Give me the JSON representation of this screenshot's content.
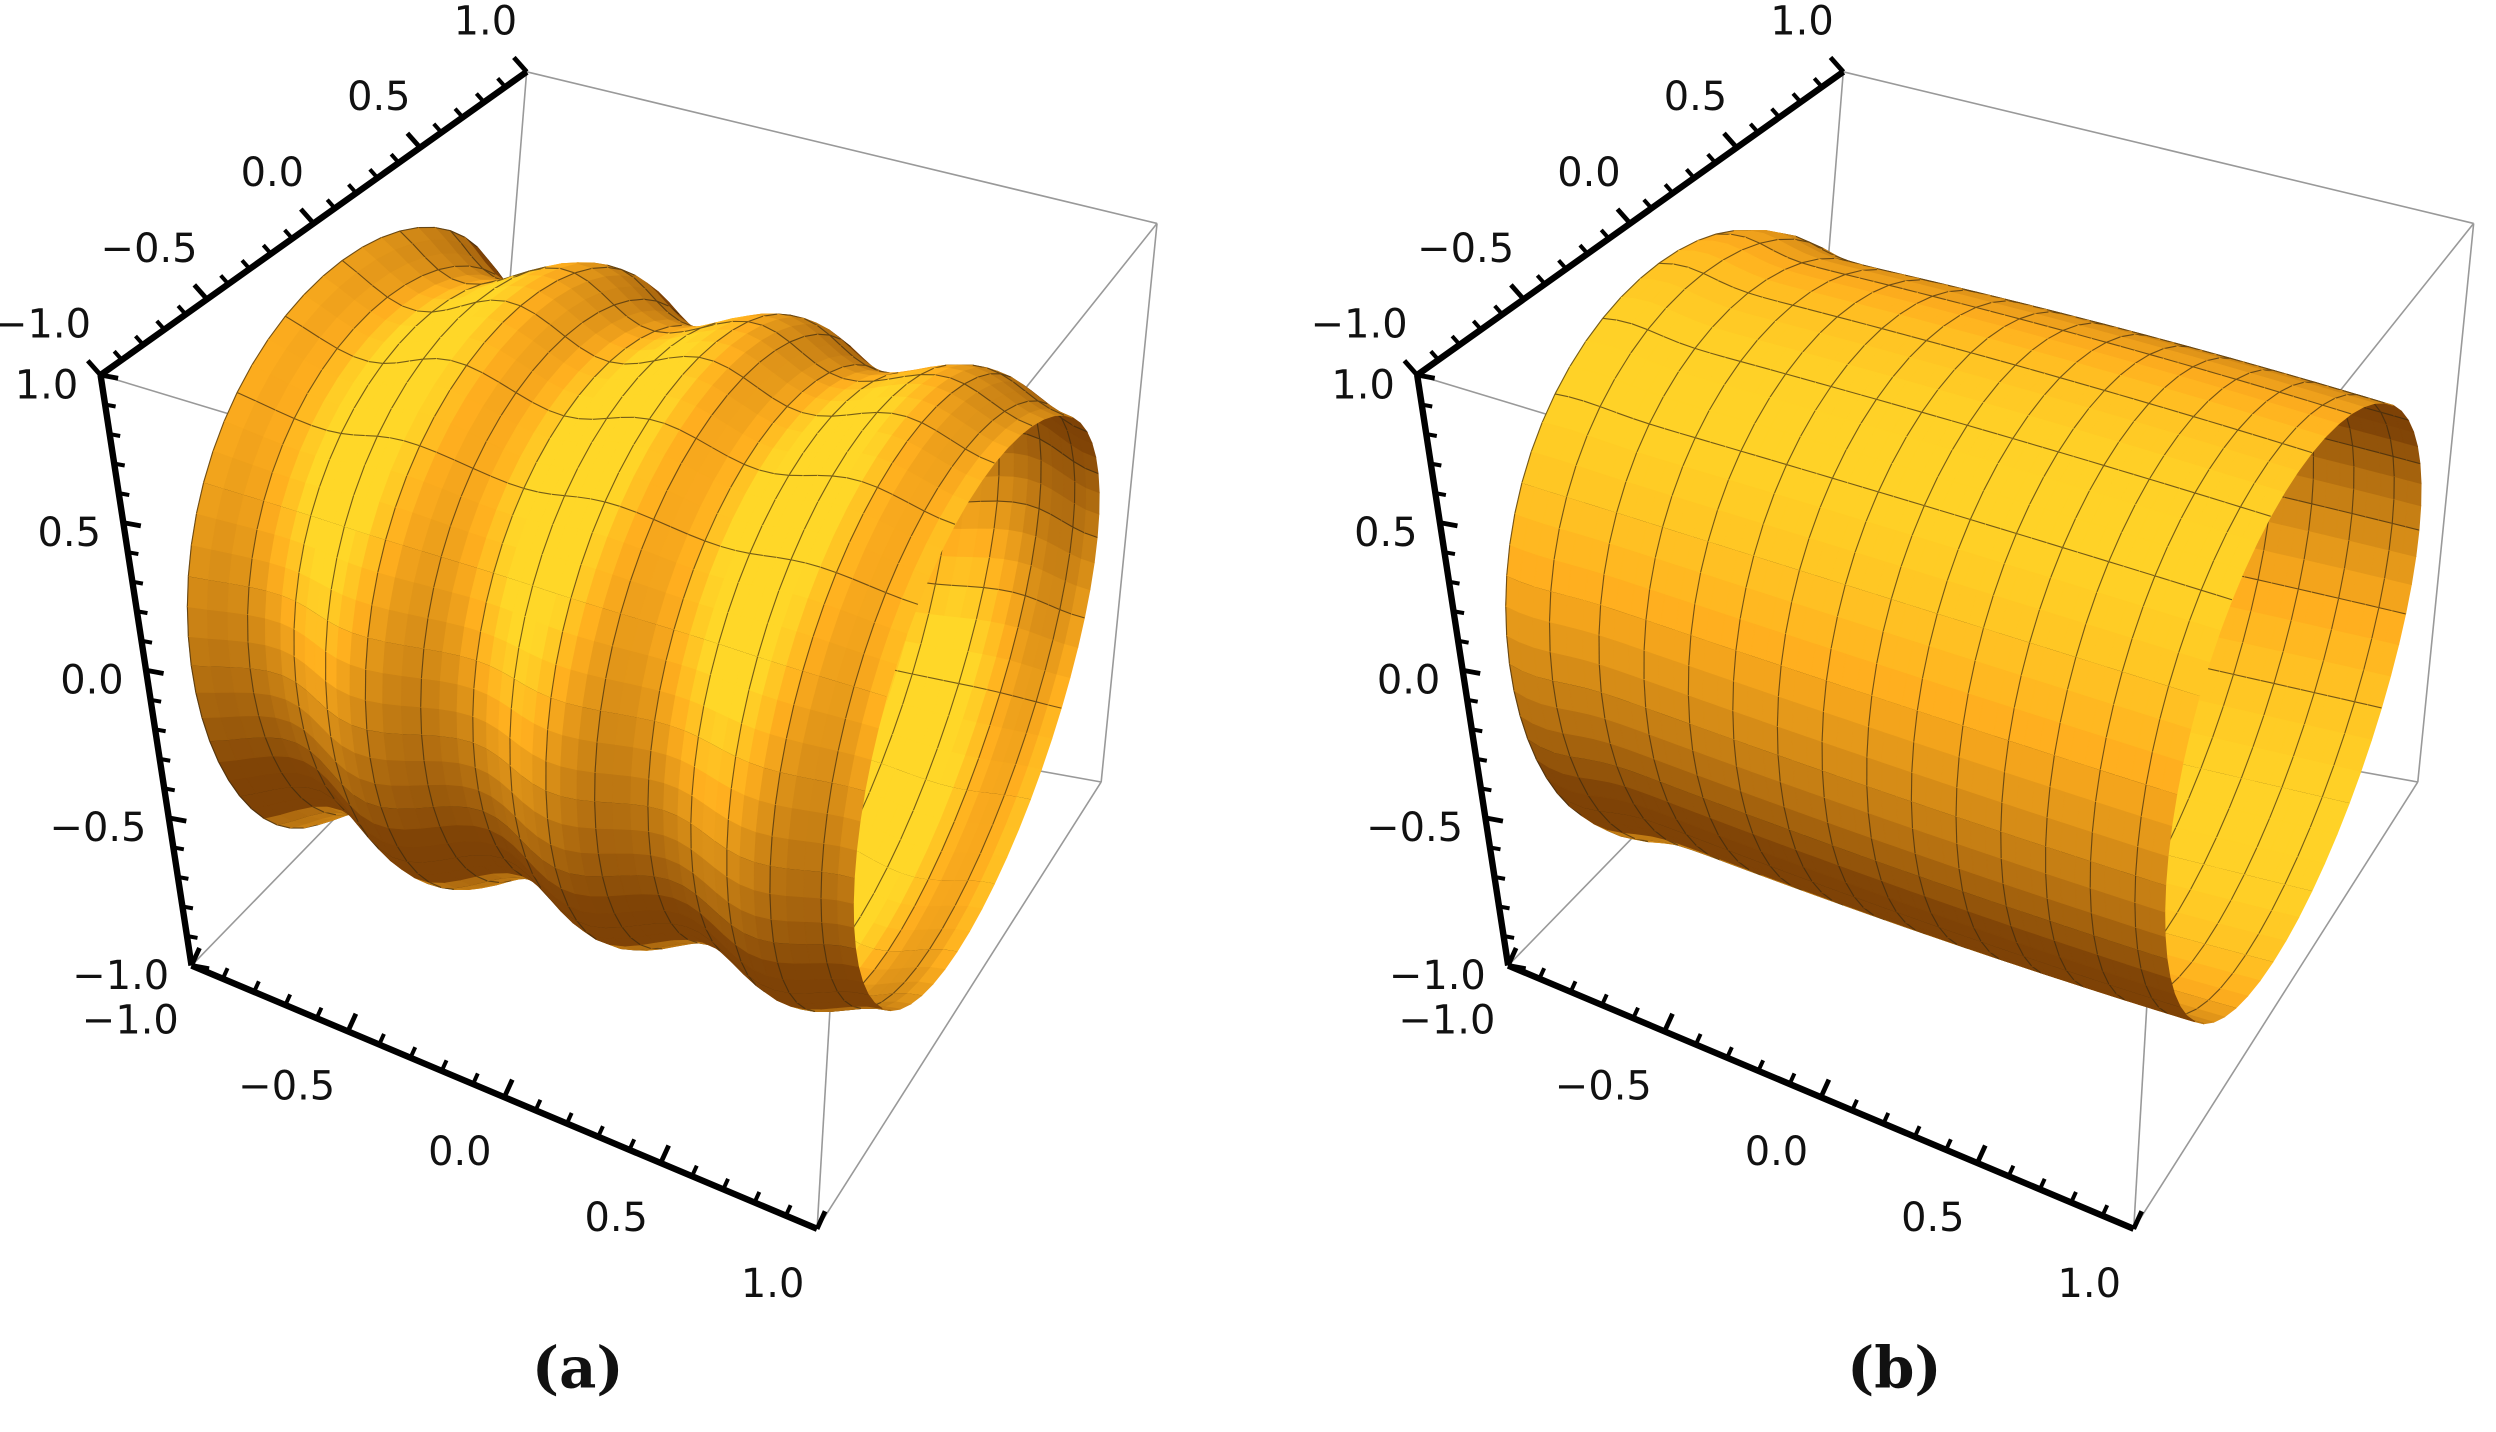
{
  "chart_data": [
    {
      "type": "surface3d",
      "caption": "(a)",
      "xlim": [
        -1,
        1
      ],
      "ylim": [
        -1,
        1
      ],
      "zlim": [
        -1,
        1
      ],
      "xticks": [
        {
          "value": -1,
          "label": "−1.0"
        },
        {
          "value": -0.5,
          "label": "−0.5"
        },
        {
          "value": 0,
          "label": "0.0"
        },
        {
          "value": 0.5,
          "label": "0.5"
        },
        {
          "value": 1,
          "label": "1.0"
        }
      ],
      "yticks": [
        {
          "value": -1,
          "label": "−1.0"
        },
        {
          "value": -0.5,
          "label": "−0.5"
        },
        {
          "value": 0,
          "label": "0.0"
        },
        {
          "value": 0.5,
          "label": "0.5"
        },
        {
          "value": 1,
          "label": "1.0"
        }
      ],
      "zticks": [
        {
          "value": -1,
          "label": "−1.0"
        },
        {
          "value": -0.5,
          "label": "−0.5"
        },
        {
          "value": 0,
          "label": "0.0"
        },
        {
          "value": 0.5,
          "label": "0.5"
        },
        {
          "value": 1,
          "label": "1.0"
        }
      ]
    },
    {
      "type": "surface3d",
      "caption": "(b)",
      "xlim": [
        -1,
        1
      ],
      "ylim": [
        -1,
        1
      ],
      "zlim": [
        -1,
        1
      ],
      "xticks": [
        {
          "value": -1,
          "label": "−1.0"
        },
        {
          "value": -0.5,
          "label": "−0.5"
        },
        {
          "value": 0,
          "label": "0.0"
        },
        {
          "value": 0.5,
          "label": "0.5"
        },
        {
          "value": 1,
          "label": "1.0"
        }
      ],
      "yticks": [
        {
          "value": -1,
          "label": "−1.0"
        },
        {
          "value": -0.5,
          "label": "−0.5"
        },
        {
          "value": 0,
          "label": "0.0"
        },
        {
          "value": 0.5,
          "label": "0.5"
        },
        {
          "value": 1,
          "label": "1.0"
        }
      ],
      "zticks": [
        {
          "value": -1,
          "label": "−1.0"
        },
        {
          "value": -0.5,
          "label": "−0.5"
        },
        {
          "value": 0,
          "label": "0.0"
        },
        {
          "value": 0.5,
          "label": "0.5"
        },
        {
          "value": 1,
          "label": "1.0"
        }
      ]
    }
  ]
}
